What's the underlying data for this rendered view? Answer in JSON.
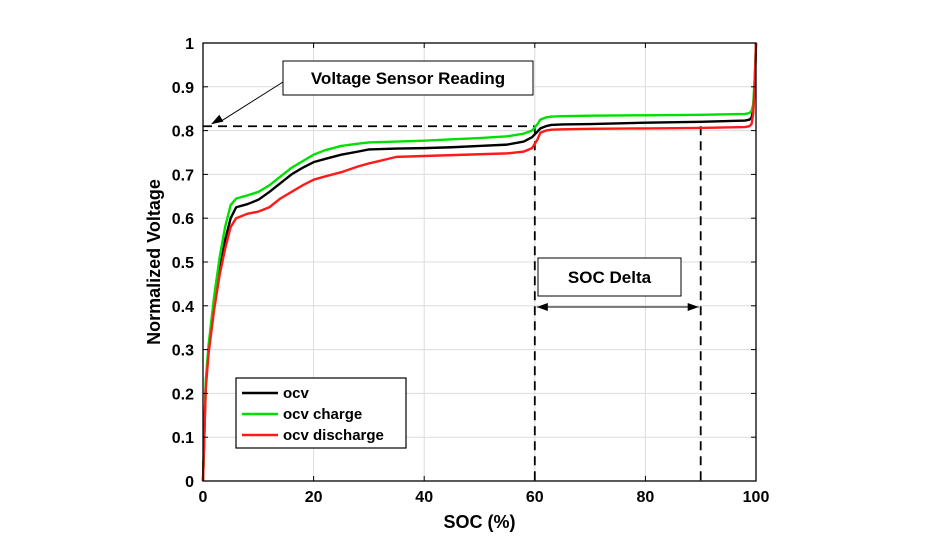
{
  "chart_data": {
    "type": "line",
    "xlabel": "SOC (%)",
    "ylabel": "Normalized Voltage",
    "xlim": [
      0,
      100
    ],
    "ylim": [
      0,
      1
    ],
    "xticks": [
      0,
      20,
      40,
      60,
      80,
      100
    ],
    "xtick_labels": [
      "0",
      "20",
      "40",
      "60",
      "80",
      "100"
    ],
    "yticks": [
      0,
      0.1,
      0.2,
      0.3,
      0.4,
      0.5,
      0.6,
      0.7,
      0.8,
      0.9,
      1
    ],
    "ytick_labels": [
      "0",
      "0.1",
      "0.2",
      "0.3",
      "0.4",
      "0.5",
      "0.6",
      "0.7",
      "0.8",
      "0.9",
      "1"
    ],
    "grid": true,
    "legend_position": "bottom-left",
    "series": [
      {
        "name": "ocv",
        "color": "#000000",
        "x": [
          0,
          0.5,
          1,
          2,
          3,
          4,
          5,
          6,
          8,
          10,
          12,
          14,
          16,
          18,
          20,
          22,
          25,
          28,
          30,
          35,
          40,
          45,
          50,
          55,
          58,
          59.5,
          60.5,
          61,
          62,
          63,
          65,
          70,
          80,
          90,
          98,
          98.8,
          99.2,
          99.5,
          99.8,
          100
        ],
        "y": [
          0,
          0.22,
          0.3,
          0.4,
          0.48,
          0.55,
          0.6,
          0.625,
          0.632,
          0.642,
          0.66,
          0.68,
          0.7,
          0.715,
          0.728,
          0.735,
          0.745,
          0.752,
          0.757,
          0.759,
          0.76,
          0.762,
          0.765,
          0.768,
          0.775,
          0.785,
          0.798,
          0.805,
          0.81,
          0.813,
          0.814,
          0.815,
          0.818,
          0.82,
          0.823,
          0.825,
          0.83,
          0.85,
          0.92,
          1.0
        ]
      },
      {
        "name": "ocv charge",
        "color": "#00e000",
        "x": [
          0,
          0.5,
          1,
          2,
          3,
          4,
          5,
          6,
          8,
          10,
          12,
          14,
          16,
          18,
          20,
          22,
          25,
          28,
          30,
          35,
          40,
          45,
          50,
          55,
          58,
          59.5,
          60.5,
          61,
          62,
          63,
          65,
          70,
          80,
          90,
          98,
          98.8,
          99.2,
          99.5,
          99.8,
          100
        ],
        "y": [
          0,
          0.23,
          0.31,
          0.42,
          0.51,
          0.58,
          0.63,
          0.645,
          0.652,
          0.66,
          0.675,
          0.695,
          0.715,
          0.73,
          0.745,
          0.755,
          0.765,
          0.77,
          0.773,
          0.775,
          0.777,
          0.78,
          0.783,
          0.787,
          0.793,
          0.8,
          0.815,
          0.825,
          0.83,
          0.832,
          0.833,
          0.834,
          0.835,
          0.836,
          0.838,
          0.84,
          0.845,
          0.86,
          0.93,
          1.0
        ]
      },
      {
        "name": "ocv discharge",
        "color": "#ff1a1a",
        "x": [
          0,
          0.5,
          1,
          2,
          3,
          4,
          5,
          6,
          8,
          10,
          12,
          14,
          16,
          18,
          20,
          22,
          25,
          28,
          30,
          35,
          40,
          45,
          50,
          55,
          58,
          59.5,
          60.5,
          61,
          62,
          63,
          65,
          70,
          80,
          90,
          98,
          98.8,
          99.2,
          99.5,
          99.8,
          100
        ],
        "y": [
          0,
          0.21,
          0.29,
          0.39,
          0.47,
          0.53,
          0.58,
          0.6,
          0.61,
          0.615,
          0.625,
          0.645,
          0.66,
          0.675,
          0.688,
          0.695,
          0.705,
          0.718,
          0.725,
          0.74,
          0.742,
          0.744,
          0.746,
          0.748,
          0.752,
          0.76,
          0.78,
          0.795,
          0.8,
          0.802,
          0.803,
          0.804,
          0.805,
          0.806,
          0.808,
          0.81,
          0.815,
          0.84,
          0.91,
          1.0
        ]
      }
    ],
    "annotations": {
      "voltage_reading": {
        "label": "Voltage Sensor Reading",
        "y": 0.81,
        "x_end": 60
      },
      "soc_delta": {
        "label": "SOC Delta",
        "x_start": 60,
        "x_end": 90
      }
    }
  }
}
